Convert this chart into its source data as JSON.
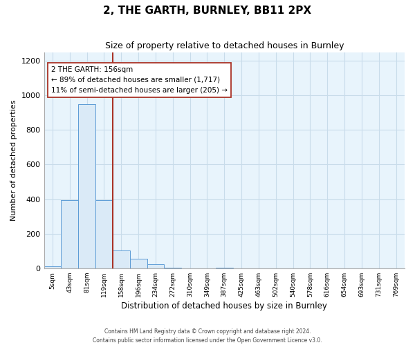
{
  "title": "2, THE GARTH, BURNLEY, BB11 2PX",
  "subtitle": "Size of property relative to detached houses in Burnley",
  "xlabel": "Distribution of detached houses by size in Burnley",
  "ylabel": "Number of detached properties",
  "bar_labels": [
    "5sqm",
    "43sqm",
    "81sqm",
    "119sqm",
    "158sqm",
    "196sqm",
    "234sqm",
    "272sqm",
    "310sqm",
    "349sqm",
    "387sqm",
    "425sqm",
    "463sqm",
    "502sqm",
    "540sqm",
    "578sqm",
    "616sqm",
    "654sqm",
    "693sqm",
    "731sqm",
    "769sqm"
  ],
  "bar_values": [
    10,
    395,
    950,
    395,
    105,
    55,
    22,
    5,
    0,
    0,
    5,
    0,
    0,
    0,
    0,
    0,
    0,
    0,
    0,
    0,
    0
  ],
  "bar_color": "#daeaf7",
  "bar_edge_color": "#5b9bd5",
  "vline_x_idx": 3.5,
  "vline_color": "#a93226",
  "annotation_text": "2 THE GARTH: 156sqm\n← 89% of detached houses are smaller (1,717)\n11% of semi-detached houses are larger (205) →",
  "annotation_box_color": "white",
  "annotation_box_edge": "#a93226",
  "ylim": [
    0,
    1250
  ],
  "yticks": [
    0,
    200,
    400,
    600,
    800,
    1000,
    1200
  ],
  "footer1": "Contains HM Land Registry data © Crown copyright and database right 2024.",
  "footer2": "Contains public sector information licensed under the Open Government Licence v3.0.",
  "bg_color": "#ffffff",
  "plot_bg_color": "#e8f4fc",
  "grid_color": "#c8dcea"
}
